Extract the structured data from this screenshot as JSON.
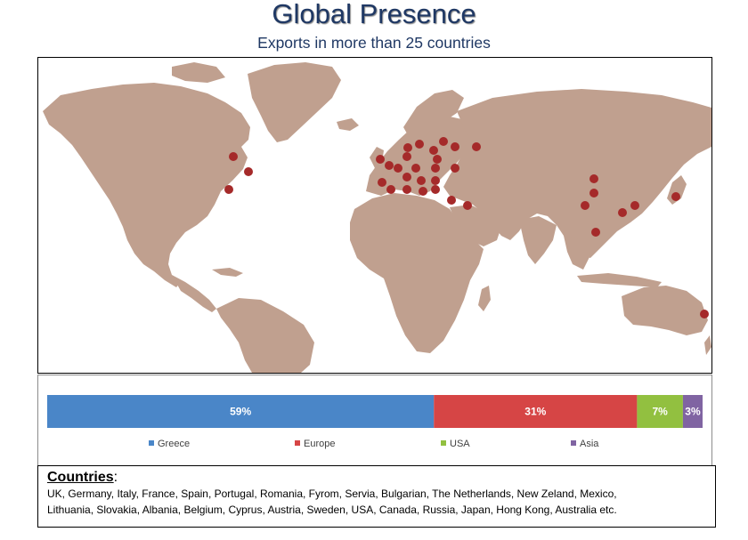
{
  "header": {
    "title": "Global Presence",
    "subtitle": "Exports in more than 25 countries"
  },
  "colors": {
    "title": "#1f3864",
    "land": "#c0a08f",
    "marker": "#a52a2a",
    "greece": "#4a86c8",
    "europe": "#d64545",
    "usa": "#92c040",
    "asia": "#8064a2"
  },
  "chart_data": {
    "type": "bar",
    "orientation": "horizontal-stacked-100",
    "categories": [
      ""
    ],
    "series": [
      {
        "name": "Greece",
        "values": [
          59
        ],
        "label": "59%",
        "color": "#4a86c8"
      },
      {
        "name": "Europe",
        "values": [
          31
        ],
        "label": "31%",
        "color": "#d64545"
      },
      {
        "name": "USA",
        "values": [
          7
        ],
        "label": "7%",
        "color": "#92c040"
      },
      {
        "name": "Asia",
        "values": [
          3
        ],
        "label": "3%",
        "color": "#8064a2"
      }
    ],
    "legend": "bottom",
    "xlim": [
      0,
      100
    ],
    "grid": false
  },
  "countries": {
    "heading": "Countries",
    "colon": ":",
    "line1": "UK, Germany, Italy, France, Spain, Portugal, Romania, Fyrom, Servia, Bulgarian, The Netherlands, New Zeland, Mexico,",
    "line2": "Lithuania, Slovakia, Albania, Belgium, Cyprus, Austria, Sweden, USA, Canada, Russia, Japan, Hong Kong, Australia etc."
  }
}
